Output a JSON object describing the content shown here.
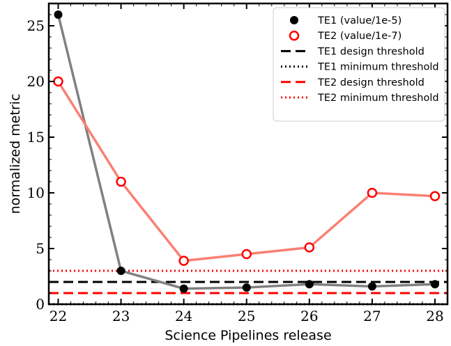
{
  "chart_data": {
    "type": "line",
    "title": "",
    "xlabel": "Science Pipelines release",
    "ylabel": "normalized metric",
    "x": [
      22,
      23,
      24,
      25,
      26,
      27,
      28
    ],
    "xlim": [
      21.85,
      28.2
    ],
    "ylim": [
      0,
      27
    ],
    "xticks": [
      "22",
      "23",
      "24",
      "25",
      "26",
      "27",
      "28"
    ],
    "yticks": [
      "0",
      "5",
      "10",
      "15",
      "20",
      "25"
    ],
    "grid": false,
    "legend_position": "top-right",
    "series": [
      {
        "name": "TE1 (value/1e-5)",
        "marker": "filled-circle",
        "line_color": "#808080",
        "marker_color": "#000000",
        "values": [
          26.0,
          3.0,
          1.4,
          1.5,
          1.8,
          1.6,
          1.8
        ]
      },
      {
        "name": "TE2 (value/1e-7)",
        "marker": "open-circle",
        "line_color": "#fa8072",
        "marker_color": "#ff0000",
        "values": [
          20.0,
          11.0,
          3.9,
          4.5,
          5.1,
          10.0,
          9.7
        ]
      }
    ],
    "thresholds": [
      {
        "name": "TE1 design threshold",
        "value": 2.0,
        "color": "#000000",
        "style": "dashed"
      },
      {
        "name": "TE1 minimum threshold",
        "value": 0.0,
        "color": "#000000",
        "style": "dotted"
      },
      {
        "name": "TE2 design threshold",
        "value": 1.0,
        "color": "#ff0000",
        "style": "dashed"
      },
      {
        "name": "TE2 minimum threshold",
        "value": 3.0,
        "color": "#ff0000",
        "style": "dotted"
      }
    ]
  }
}
